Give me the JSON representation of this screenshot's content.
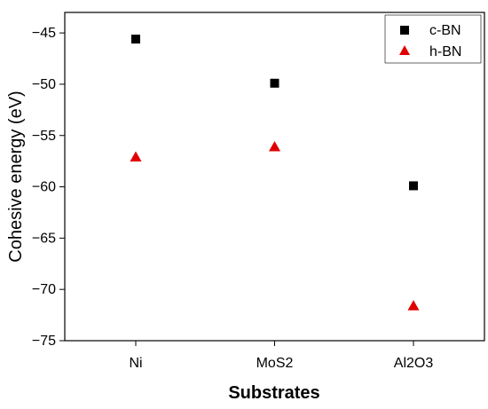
{
  "chart_data": {
    "type": "scatter",
    "title": "",
    "xlabel": "Substrates",
    "ylabel": "Cohesive energy (eV)",
    "categories": [
      "Ni",
      "MoS2",
      "Al2O3"
    ],
    "ylim": [
      -75,
      -43
    ],
    "yticks": [
      -45,
      -50,
      -55,
      -60,
      -65,
      -70,
      -75
    ],
    "ytick_labels": [
      "−45",
      "−50",
      "−55",
      "−60",
      "−65",
      "−70",
      "−75"
    ],
    "grid": false,
    "legend_position": "top-right",
    "series": [
      {
        "name": "c-BN",
        "marker": "square",
        "color": "#000000",
        "values": [
          -45.6,
          -49.9,
          -59.9
        ]
      },
      {
        "name": "h-BN",
        "marker": "triangle",
        "color": "#e00000",
        "values": [
          -57.1,
          -56.1,
          -71.6
        ]
      }
    ]
  }
}
